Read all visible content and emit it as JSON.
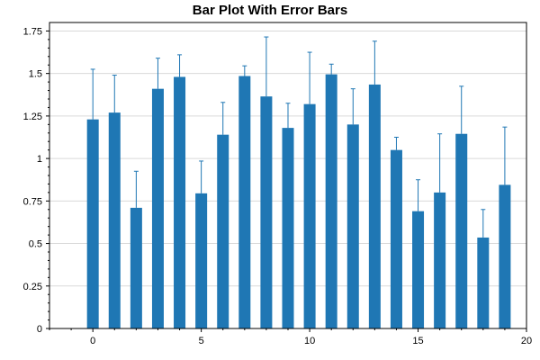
{
  "chart_data": {
    "type": "bar",
    "title": "Bar Plot With Error Bars",
    "xlabel": "",
    "ylabel": "",
    "xlim": [
      -2,
      20
    ],
    "ylim": [
      0,
      1.8
    ],
    "grid": true,
    "x": [
      0,
      1,
      2,
      3,
      4,
      5,
      6,
      7,
      8,
      9,
      10,
      11,
      12,
      13,
      14,
      15,
      16,
      17,
      18,
      19
    ],
    "values": [
      1.23,
      1.27,
      0.71,
      1.41,
      1.48,
      0.795,
      1.14,
      1.485,
      1.365,
      1.18,
      1.32,
      1.495,
      1.2,
      1.435,
      1.05,
      0.69,
      0.8,
      1.145,
      0.535,
      0.845
    ],
    "errors": [
      0.295,
      0.22,
      0.215,
      0.18,
      0.13,
      0.19,
      0.19,
      0.06,
      0.35,
      0.145,
      0.305,
      0.06,
      0.21,
      0.255,
      0.075,
      0.185,
      0.345,
      0.28,
      0.165,
      0.34
    ],
    "x_ticks": [
      0,
      5,
      10,
      15,
      20
    ],
    "x_tick_labels": [
      "0",
      "5",
      "10",
      "15",
      "20"
    ],
    "y_ticks": [
      0,
      0.25,
      0.5,
      0.75,
      1,
      1.25,
      1.5,
      1.75
    ],
    "y_tick_labels": [
      "0",
      "0.25",
      "0.5",
      "0.75",
      "1",
      "1.25",
      "1.5",
      "1.75"
    ],
    "colors": {
      "bar": "#1f77b4",
      "error": "#1f77b4",
      "grid": "#d9d9d9",
      "axis": "#000000"
    }
  }
}
